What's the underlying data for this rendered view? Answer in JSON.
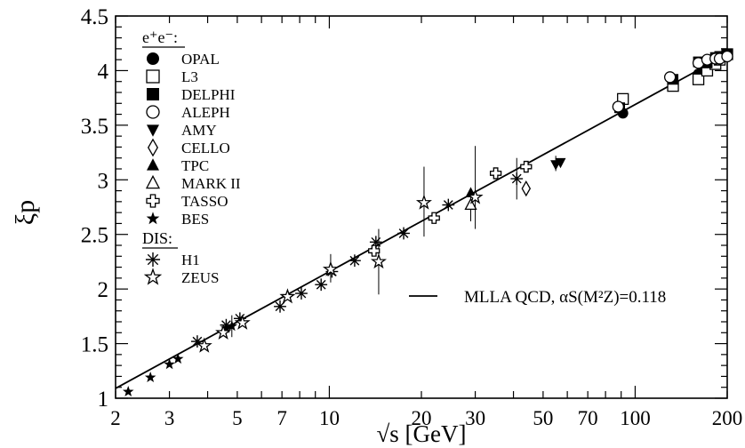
{
  "chart_data": {
    "type": "scatter",
    "x_scale": "log",
    "xlabel": "√s [GeV]",
    "ylabel": "ξp",
    "xlim": [
      2,
      200
    ],
    "ylim": [
      1,
      4.5
    ],
    "x_ticks": [
      2,
      3,
      5,
      7,
      10,
      20,
      30,
      50,
      70,
      100,
      200
    ],
    "y_ticks": [
      1,
      1.5,
      2,
      2.5,
      3,
      3.5,
      4,
      4.5
    ],
    "legend_groups": [
      {
        "heading": "e⁺e⁻:",
        "entries": [
          "OPAL",
          "L3",
          "DELPHI",
          "ALEPH",
          "AMY",
          "CELLO",
          "TPC",
          "MARK II",
          "TASSO",
          "BES"
        ]
      },
      {
        "heading": "DIS:",
        "entries": [
          "H1",
          "ZEUS"
        ]
      }
    ],
    "curve_label": "MLLA QCD, αS(M²Z)=0.118",
    "curve": {
      "x": [
        2,
        200
      ],
      "y": [
        1.09,
        4.15
      ]
    },
    "series": [
      {
        "name": "OPAL",
        "marker": "filled-circle",
        "x": [
          91.2,
          161,
          172,
          183,
          189,
          200
        ],
        "y": [
          3.61,
          3.97,
          4.03,
          4.07,
          4.1,
          4.14
        ]
      },
      {
        "name": "L3",
        "marker": "open-square",
        "x": [
          91.2,
          133,
          161,
          172,
          183,
          189,
          200
        ],
        "y": [
          3.74,
          3.86,
          3.92,
          4.0,
          4.06,
          4.1,
          4.15
        ]
      },
      {
        "name": "DELPHI",
        "marker": "filled-square",
        "x": [
          89,
          133,
          161,
          172,
          183,
          189,
          200
        ],
        "y": [
          3.66,
          3.92,
          4.08,
          4.07,
          4.12,
          4.13,
          4.15
        ]
      },
      {
        "name": "ALEPH",
        "marker": "open-circle",
        "x": [
          88,
          130,
          161,
          172,
          183,
          189,
          200
        ],
        "y": [
          3.67,
          3.94,
          4.07,
          4.1,
          4.11,
          4.11,
          4.13
        ]
      },
      {
        "name": "AMY",
        "marker": "filled-triangle-down",
        "x": [
          55,
          57
        ],
        "y": [
          3.14,
          3.16
        ]
      },
      {
        "name": "CELLO",
        "marker": "open-diamond",
        "x": [
          44
        ],
        "y": [
          2.92
        ]
      },
      {
        "name": "TPC",
        "marker": "filled-triangle-up",
        "x": [
          29
        ],
        "y": [
          2.88
        ]
      },
      {
        "name": "MARK II",
        "marker": "open-triangle-up",
        "x": [
          29
        ],
        "y": [
          2.77
        ]
      },
      {
        "name": "TASSO",
        "marker": "open-cross",
        "x": [
          14,
          22,
          35,
          44
        ],
        "y": [
          2.35,
          2.65,
          3.06,
          3.12
        ]
      },
      {
        "name": "BES",
        "marker": "filled-star",
        "x": [
          2.2,
          2.6,
          3.0,
          3.2,
          4.6,
          4.8
        ],
        "y": [
          1.06,
          1.19,
          1.31,
          1.36,
          1.64,
          1.66
        ]
      },
      {
        "name": "H1",
        "marker": "asterisk",
        "x": [
          3.7,
          4.6,
          5.1,
          6.9,
          8.1,
          9.4,
          10.2,
          12.1,
          14.2,
          17.5,
          24.5,
          41
        ],
        "y": [
          1.52,
          1.67,
          1.73,
          1.84,
          1.96,
          2.04,
          2.16,
          2.26,
          2.43,
          2.51,
          2.77,
          3.01
        ]
      },
      {
        "name": "ZEUS",
        "marker": "open-star",
        "x": [
          3.9,
          4.5,
          5.2,
          7.3,
          10.1,
          14.5,
          20.4,
          30
        ],
        "y": [
          1.48,
          1.6,
          1.69,
          1.93,
          2.18,
          2.25,
          2.79,
          2.84
        ]
      }
    ],
    "error_bars": [
      {
        "x": 14.5,
        "lo": 1.95,
        "hi": 2.55
      },
      {
        "x": 20.4,
        "lo": 2.48,
        "hi": 3.12
      },
      {
        "x": 30,
        "lo": 2.55,
        "hi": 3.31
      },
      {
        "x": 41,
        "lo": 2.82,
        "hi": 3.2
      },
      {
        "x": 29,
        "lo": 2.62,
        "hi": 2.92
      },
      {
        "x": 10.1,
        "lo": 2.06,
        "hi": 2.32
      },
      {
        "x": 4.8,
        "lo": 1.56,
        "hi": 1.76
      },
      {
        "x": 55,
        "lo": 3.08,
        "hi": 3.22
      }
    ]
  }
}
